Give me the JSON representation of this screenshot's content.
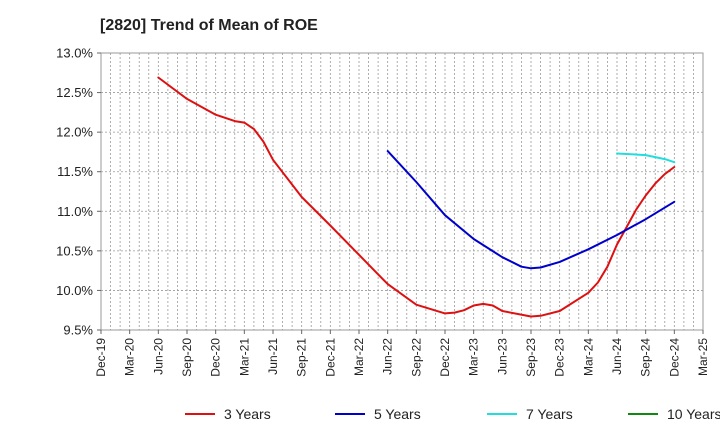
{
  "chart_data": {
    "type": "line",
    "title": "[2820]  Trend of Mean of ROE",
    "xlabel": "",
    "ylabel": "",
    "x_ticks": [
      "Dec-19",
      "Mar-20",
      "Jun-20",
      "Sep-20",
      "Dec-20",
      "Mar-21",
      "Jun-21",
      "Sep-21",
      "Dec-21",
      "Mar-22",
      "Jun-22",
      "Sep-22",
      "Dec-22",
      "Mar-23",
      "Jun-23",
      "Sep-23",
      "Dec-23",
      "Mar-24",
      "Jun-24",
      "Sep-24",
      "Dec-24",
      "Mar-25"
    ],
    "y_ticks": [
      "9.5%",
      "10.0%",
      "10.5%",
      "11.0%",
      "11.5%",
      "12.0%",
      "12.5%",
      "13.0%"
    ],
    "ylim": [
      9.5,
      13.0
    ],
    "grid": true,
    "legend_position": "bottom",
    "colors": {
      "3 Years": "#dd1111",
      "5 Years": "#0000cc",
      "7 Years": "#22dddd",
      "10 Years": "#118811"
    },
    "series": [
      {
        "name": "3 Years",
        "points": [
          [
            "Jun-20",
            12.69
          ],
          [
            "Sep-20",
            12.42
          ],
          [
            "Dec-20",
            12.22
          ],
          [
            "Feb-21",
            12.14
          ],
          [
            "Mar-21",
            12.12
          ],
          [
            "Apr-21",
            12.04
          ],
          [
            "May-21",
            11.88
          ],
          [
            "Jun-21",
            11.65
          ],
          [
            "Sep-21",
            11.18
          ],
          [
            "Dec-21",
            10.82
          ],
          [
            "Mar-22",
            10.45
          ],
          [
            "Jun-22",
            10.08
          ],
          [
            "Sep-22",
            9.82
          ],
          [
            "Dec-22",
            9.71
          ],
          [
            "Jan-23",
            9.72
          ],
          [
            "Feb-23",
            9.75
          ],
          [
            "Mar-23",
            9.81
          ],
          [
            "Apr-23",
            9.83
          ],
          [
            "May-23",
            9.81
          ],
          [
            "Jun-23",
            9.74
          ],
          [
            "Sep-23",
            9.67
          ],
          [
            "Oct-23",
            9.68
          ],
          [
            "Dec-23",
            9.74
          ],
          [
            "Mar-24",
            9.97
          ],
          [
            "Apr-24",
            10.1
          ],
          [
            "May-24",
            10.3
          ],
          [
            "Jun-24",
            10.58
          ],
          [
            "Jul-24",
            10.8
          ],
          [
            "Aug-24",
            11.02
          ],
          [
            "Sep-24",
            11.2
          ],
          [
            "Oct-24",
            11.35
          ],
          [
            "Nov-24",
            11.47
          ],
          [
            "Dec-24",
            11.56
          ]
        ]
      },
      {
        "name": "5 Years",
        "points": [
          [
            "Jun-22",
            11.76
          ],
          [
            "Sep-22",
            11.37
          ],
          [
            "Dec-22",
            10.95
          ],
          [
            "Mar-23",
            10.65
          ],
          [
            "Jun-23",
            10.42
          ],
          [
            "Aug-23",
            10.3
          ],
          [
            "Sep-23",
            10.28
          ],
          [
            "Oct-23",
            10.29
          ],
          [
            "Dec-23",
            10.36
          ],
          [
            "Mar-24",
            10.52
          ],
          [
            "Jun-24",
            10.7
          ],
          [
            "Sep-24",
            10.9
          ],
          [
            "Dec-24",
            11.12
          ]
        ]
      },
      {
        "name": "7 Years",
        "points": [
          [
            "Jun-24",
            11.73
          ],
          [
            "Sep-24",
            11.71
          ],
          [
            "Nov-24",
            11.66
          ],
          [
            "Dec-24",
            11.62
          ]
        ]
      },
      {
        "name": "10 Years",
        "points": []
      }
    ]
  }
}
